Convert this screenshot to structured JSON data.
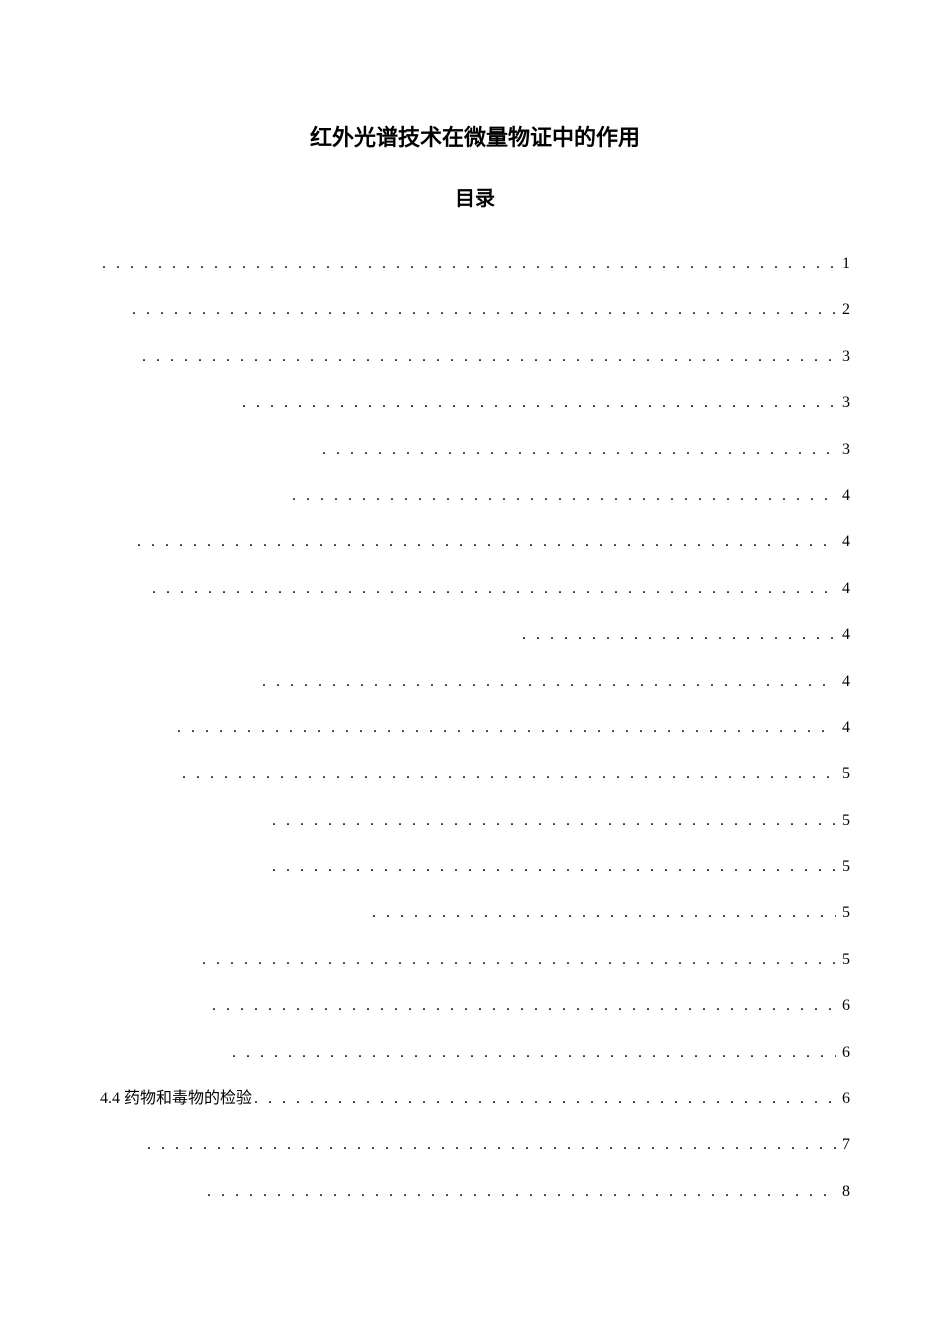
{
  "document": {
    "title": "红外光谱技术在微量物证中的作用",
    "subtitle": "目录",
    "toc_entries": [
      {
        "label": "",
        "indent": 0,
        "page": "1"
      },
      {
        "label": "",
        "indent": 30,
        "page": "2"
      },
      {
        "label": "",
        "indent": 40,
        "page": "3"
      },
      {
        "label": "",
        "indent": 140,
        "page": "3"
      },
      {
        "label": "",
        "indent": 220,
        "page": "3"
      },
      {
        "label": "",
        "indent": 190,
        "page": "4"
      },
      {
        "label": "",
        "indent": 35,
        "page": "4"
      },
      {
        "label": "",
        "indent": 50,
        "page": "4"
      },
      {
        "label": "",
        "indent": 420,
        "page": "4"
      },
      {
        "label": "",
        "indent": 160,
        "page": "4"
      },
      {
        "label": "",
        "indent": 75,
        "page": "4"
      },
      {
        "label": "",
        "indent": 80,
        "page": "5"
      },
      {
        "label": "",
        "indent": 170,
        "page": "5"
      },
      {
        "label": "",
        "indent": 170,
        "page": "5"
      },
      {
        "label": "",
        "indent": 270,
        "page": "5"
      },
      {
        "label": "",
        "indent": 100,
        "page": "5"
      },
      {
        "label": "",
        "indent": 110,
        "page": "6"
      },
      {
        "label": "",
        "indent": 130,
        "page": "6"
      },
      {
        "label": "4.4 药物和毒物的检验",
        "indent": 0,
        "page": "6"
      },
      {
        "label": "",
        "indent": 45,
        "page": "7"
      },
      {
        "label": "",
        "indent": 105,
        "page": "8"
      }
    ]
  }
}
